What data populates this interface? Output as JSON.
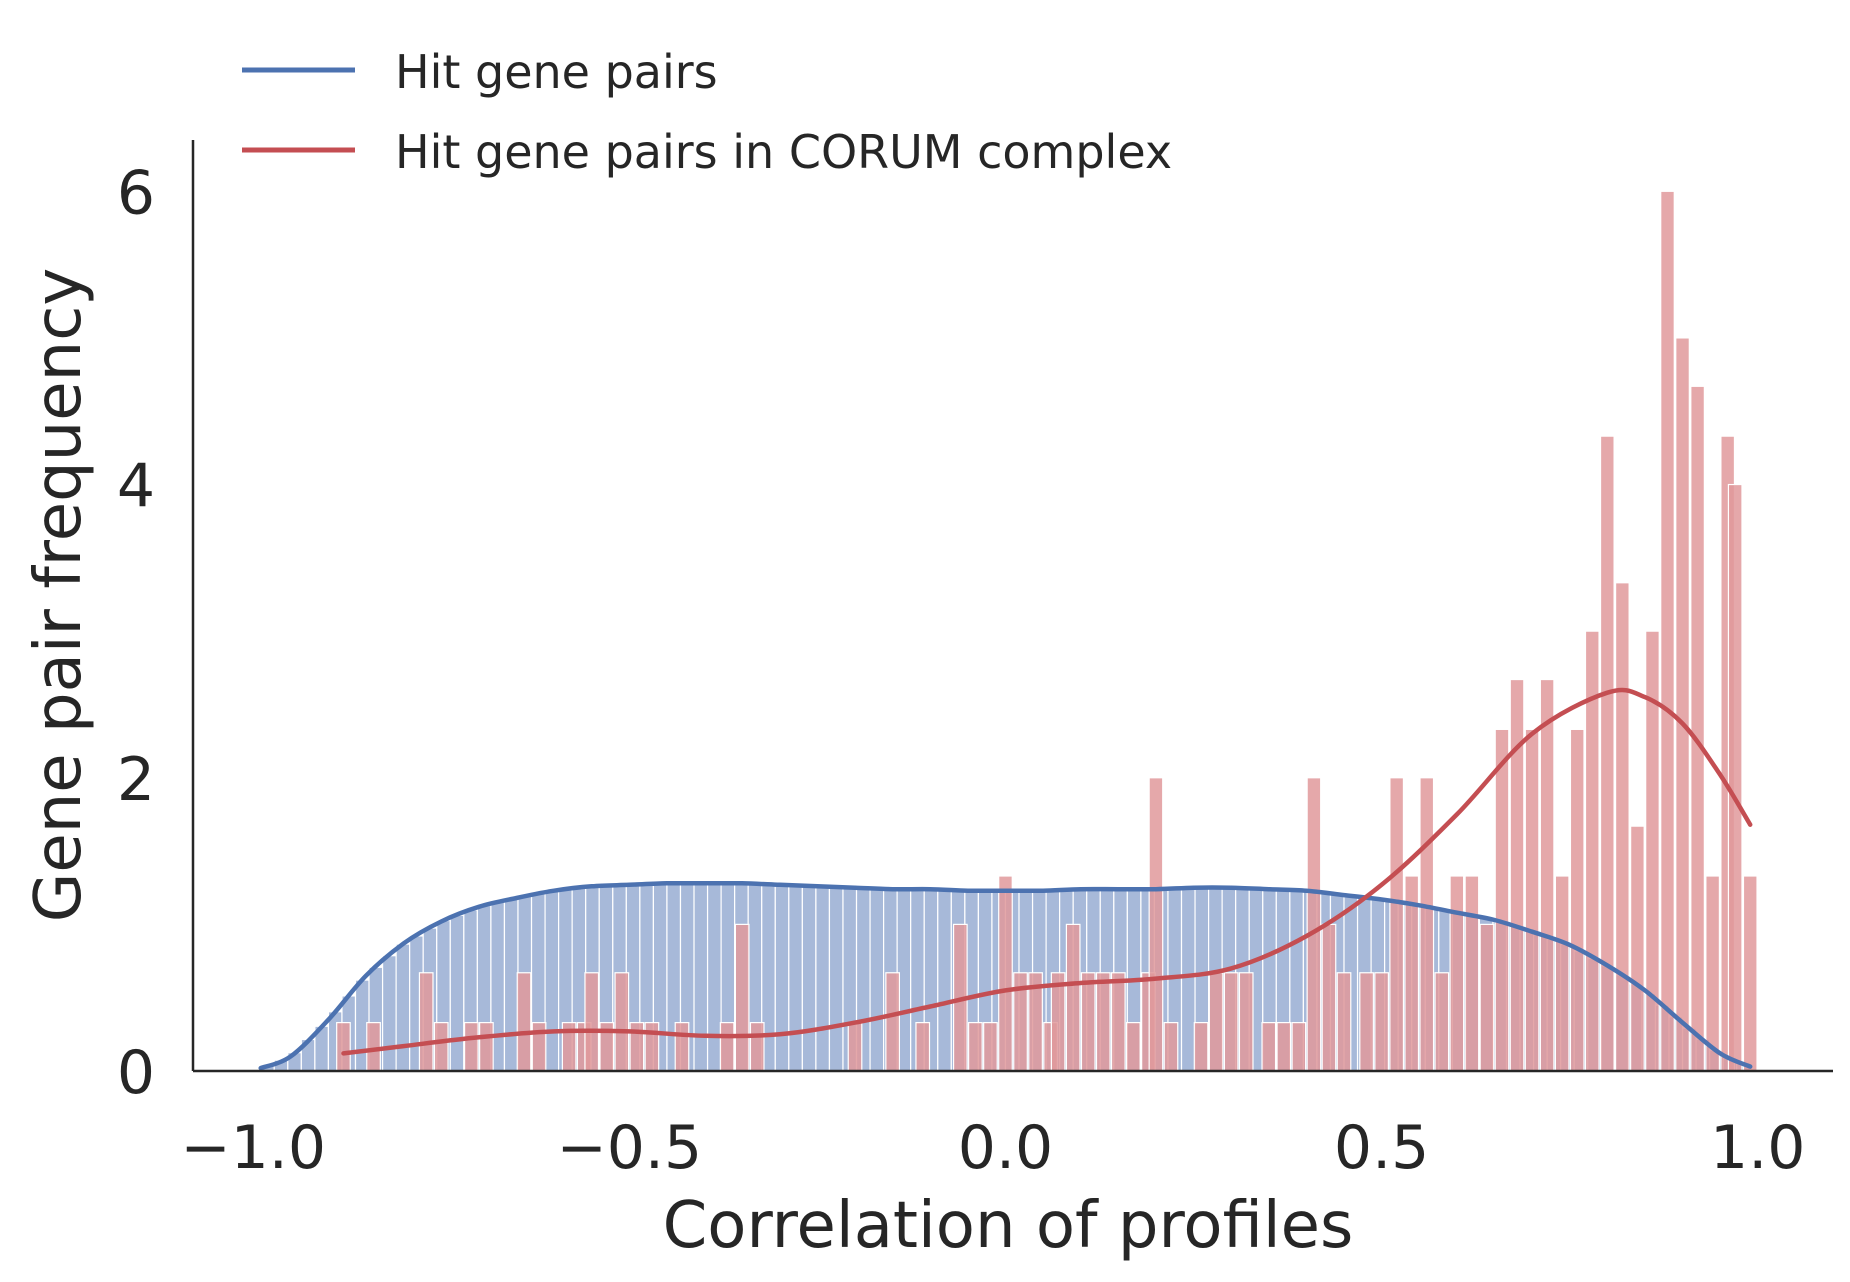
{
  "chart_data": {
    "type": "bar",
    "xlabel": "Correlation of profiles",
    "ylabel": "Gene pair frequency",
    "xlim": [
      -1.08,
      1.1
    ],
    "ylim": [
      0,
      6.35
    ],
    "x_ticks": [
      -1.0,
      -0.5,
      0.0,
      0.5,
      1.0
    ],
    "x_tick_labels": [
      "−1.0",
      "−0.5",
      "0.0",
      "0.5",
      "1.0"
    ],
    "y_ticks": [
      0,
      2,
      4,
      6
    ],
    "y_tick_labels": [
      "0",
      "2",
      "4",
      "6"
    ],
    "grid": false,
    "legend_position": "top-left",
    "colors": {
      "hit_line": "#4c72b0",
      "hit_fill": "#a7b9d9",
      "corum_line": "#c44e52",
      "corum_fill": "#e1999b",
      "axis": "#262626"
    },
    "legend": [
      {
        "label": "Hit gene pairs",
        "color": "#4c72b0"
      },
      {
        "label": "Hit gene pairs in CORUM complex",
        "color": "#c44e52"
      }
    ],
    "series": [
      {
        "name": "Hit gene pairs",
        "kind": "histogram",
        "bin_range": [
          -0.99,
          0.99
        ],
        "bin_count": 110,
        "kde_x": [
          -0.99,
          -0.95,
          -0.9,
          -0.85,
          -0.8,
          -0.75,
          -0.7,
          -0.65,
          -0.6,
          -0.55,
          -0.5,
          -0.45,
          -0.4,
          -0.35,
          -0.3,
          -0.25,
          -0.2,
          -0.15,
          -0.1,
          -0.05,
          0.0,
          0.05,
          0.1,
          0.15,
          0.2,
          0.25,
          0.3,
          0.35,
          0.4,
          0.45,
          0.5,
          0.55,
          0.6,
          0.65,
          0.7,
          0.75,
          0.8,
          0.85,
          0.9,
          0.95,
          0.99
        ],
        "kde_y": [
          0.02,
          0.1,
          0.35,
          0.65,
          0.87,
          1.02,
          1.12,
          1.18,
          1.23,
          1.26,
          1.27,
          1.28,
          1.28,
          1.28,
          1.27,
          1.26,
          1.25,
          1.24,
          1.24,
          1.23,
          1.23,
          1.23,
          1.24,
          1.24,
          1.24,
          1.25,
          1.25,
          1.24,
          1.23,
          1.2,
          1.17,
          1.13,
          1.08,
          1.03,
          0.95,
          0.86,
          0.72,
          0.55,
          0.33,
          0.12,
          0.03
        ]
      },
      {
        "name": "Hit gene pairs in CORUM complex",
        "kind": "histogram",
        "bins": [
          [
            -0.88,
            0.33
          ],
          [
            -0.84,
            0.33
          ],
          [
            -0.77,
            0.67
          ],
          [
            -0.75,
            0.33
          ],
          [
            -0.71,
            0.33
          ],
          [
            -0.69,
            0.33
          ],
          [
            -0.64,
            0.67
          ],
          [
            -0.62,
            0.33
          ],
          [
            -0.58,
            0.33
          ],
          [
            -0.56,
            0.33
          ],
          [
            -0.55,
            0.67
          ],
          [
            -0.53,
            0.33
          ],
          [
            -0.51,
            0.67
          ],
          [
            -0.49,
            0.33
          ],
          [
            -0.47,
            0.33
          ],
          [
            -0.43,
            0.33
          ],
          [
            -0.37,
            0.33
          ],
          [
            -0.35,
            1.0
          ],
          [
            -0.33,
            0.33
          ],
          [
            -0.2,
            0.33
          ],
          [
            -0.15,
            0.67
          ],
          [
            -0.11,
            0.33
          ],
          [
            -0.06,
            1.0
          ],
          [
            -0.04,
            0.33
          ],
          [
            -0.02,
            0.33
          ],
          [
            0.0,
            1.33
          ],
          [
            0.02,
            0.67
          ],
          [
            0.04,
            0.67
          ],
          [
            0.06,
            0.33
          ],
          [
            0.07,
            0.67
          ],
          [
            0.09,
            1.0
          ],
          [
            0.11,
            0.67
          ],
          [
            0.13,
            0.67
          ],
          [
            0.15,
            0.67
          ],
          [
            0.17,
            0.33
          ],
          [
            0.19,
            0.67
          ],
          [
            0.2,
            2.0
          ],
          [
            0.22,
            0.33
          ],
          [
            0.26,
            0.33
          ],
          [
            0.28,
            0.67
          ],
          [
            0.3,
            0.67
          ],
          [
            0.32,
            0.67
          ],
          [
            0.35,
            0.33
          ],
          [
            0.37,
            0.33
          ],
          [
            0.39,
            0.33
          ],
          [
            0.41,
            2.0
          ],
          [
            0.43,
            1.0
          ],
          [
            0.45,
            0.67
          ],
          [
            0.48,
            0.67
          ],
          [
            0.5,
            0.67
          ],
          [
            0.52,
            2.0
          ],
          [
            0.54,
            1.33
          ],
          [
            0.56,
            2.0
          ],
          [
            0.58,
            0.67
          ],
          [
            0.6,
            1.33
          ],
          [
            0.62,
            1.33
          ],
          [
            0.64,
            1.0
          ],
          [
            0.66,
            2.33
          ],
          [
            0.68,
            2.67
          ],
          [
            0.7,
            2.33
          ],
          [
            0.72,
            2.67
          ],
          [
            0.74,
            1.33
          ],
          [
            0.76,
            2.33
          ],
          [
            0.78,
            3.0
          ],
          [
            0.8,
            4.33
          ],
          [
            0.82,
            3.33
          ],
          [
            0.84,
            1.67
          ],
          [
            0.86,
            3.0
          ],
          [
            0.88,
            6.0
          ],
          [
            0.9,
            5.0
          ],
          [
            0.92,
            4.67
          ],
          [
            0.94,
            1.33
          ],
          [
            0.96,
            4.33
          ],
          [
            0.97,
            4.0
          ],
          [
            0.99,
            1.33
          ]
        ],
        "kde_x": [
          -0.88,
          -0.8,
          -0.7,
          -0.6,
          -0.5,
          -0.4,
          -0.3,
          -0.2,
          -0.1,
          0.0,
          0.1,
          0.2,
          0.3,
          0.4,
          0.5,
          0.6,
          0.7,
          0.8,
          0.85,
          0.9,
          0.95,
          0.99
        ],
        "kde_y": [
          0.12,
          0.17,
          0.23,
          0.27,
          0.27,
          0.24,
          0.25,
          0.33,
          0.44,
          0.55,
          0.6,
          0.63,
          0.7,
          0.92,
          1.27,
          1.75,
          2.3,
          2.58,
          2.55,
          2.37,
          2.02,
          1.68
        ]
      }
    ]
  }
}
